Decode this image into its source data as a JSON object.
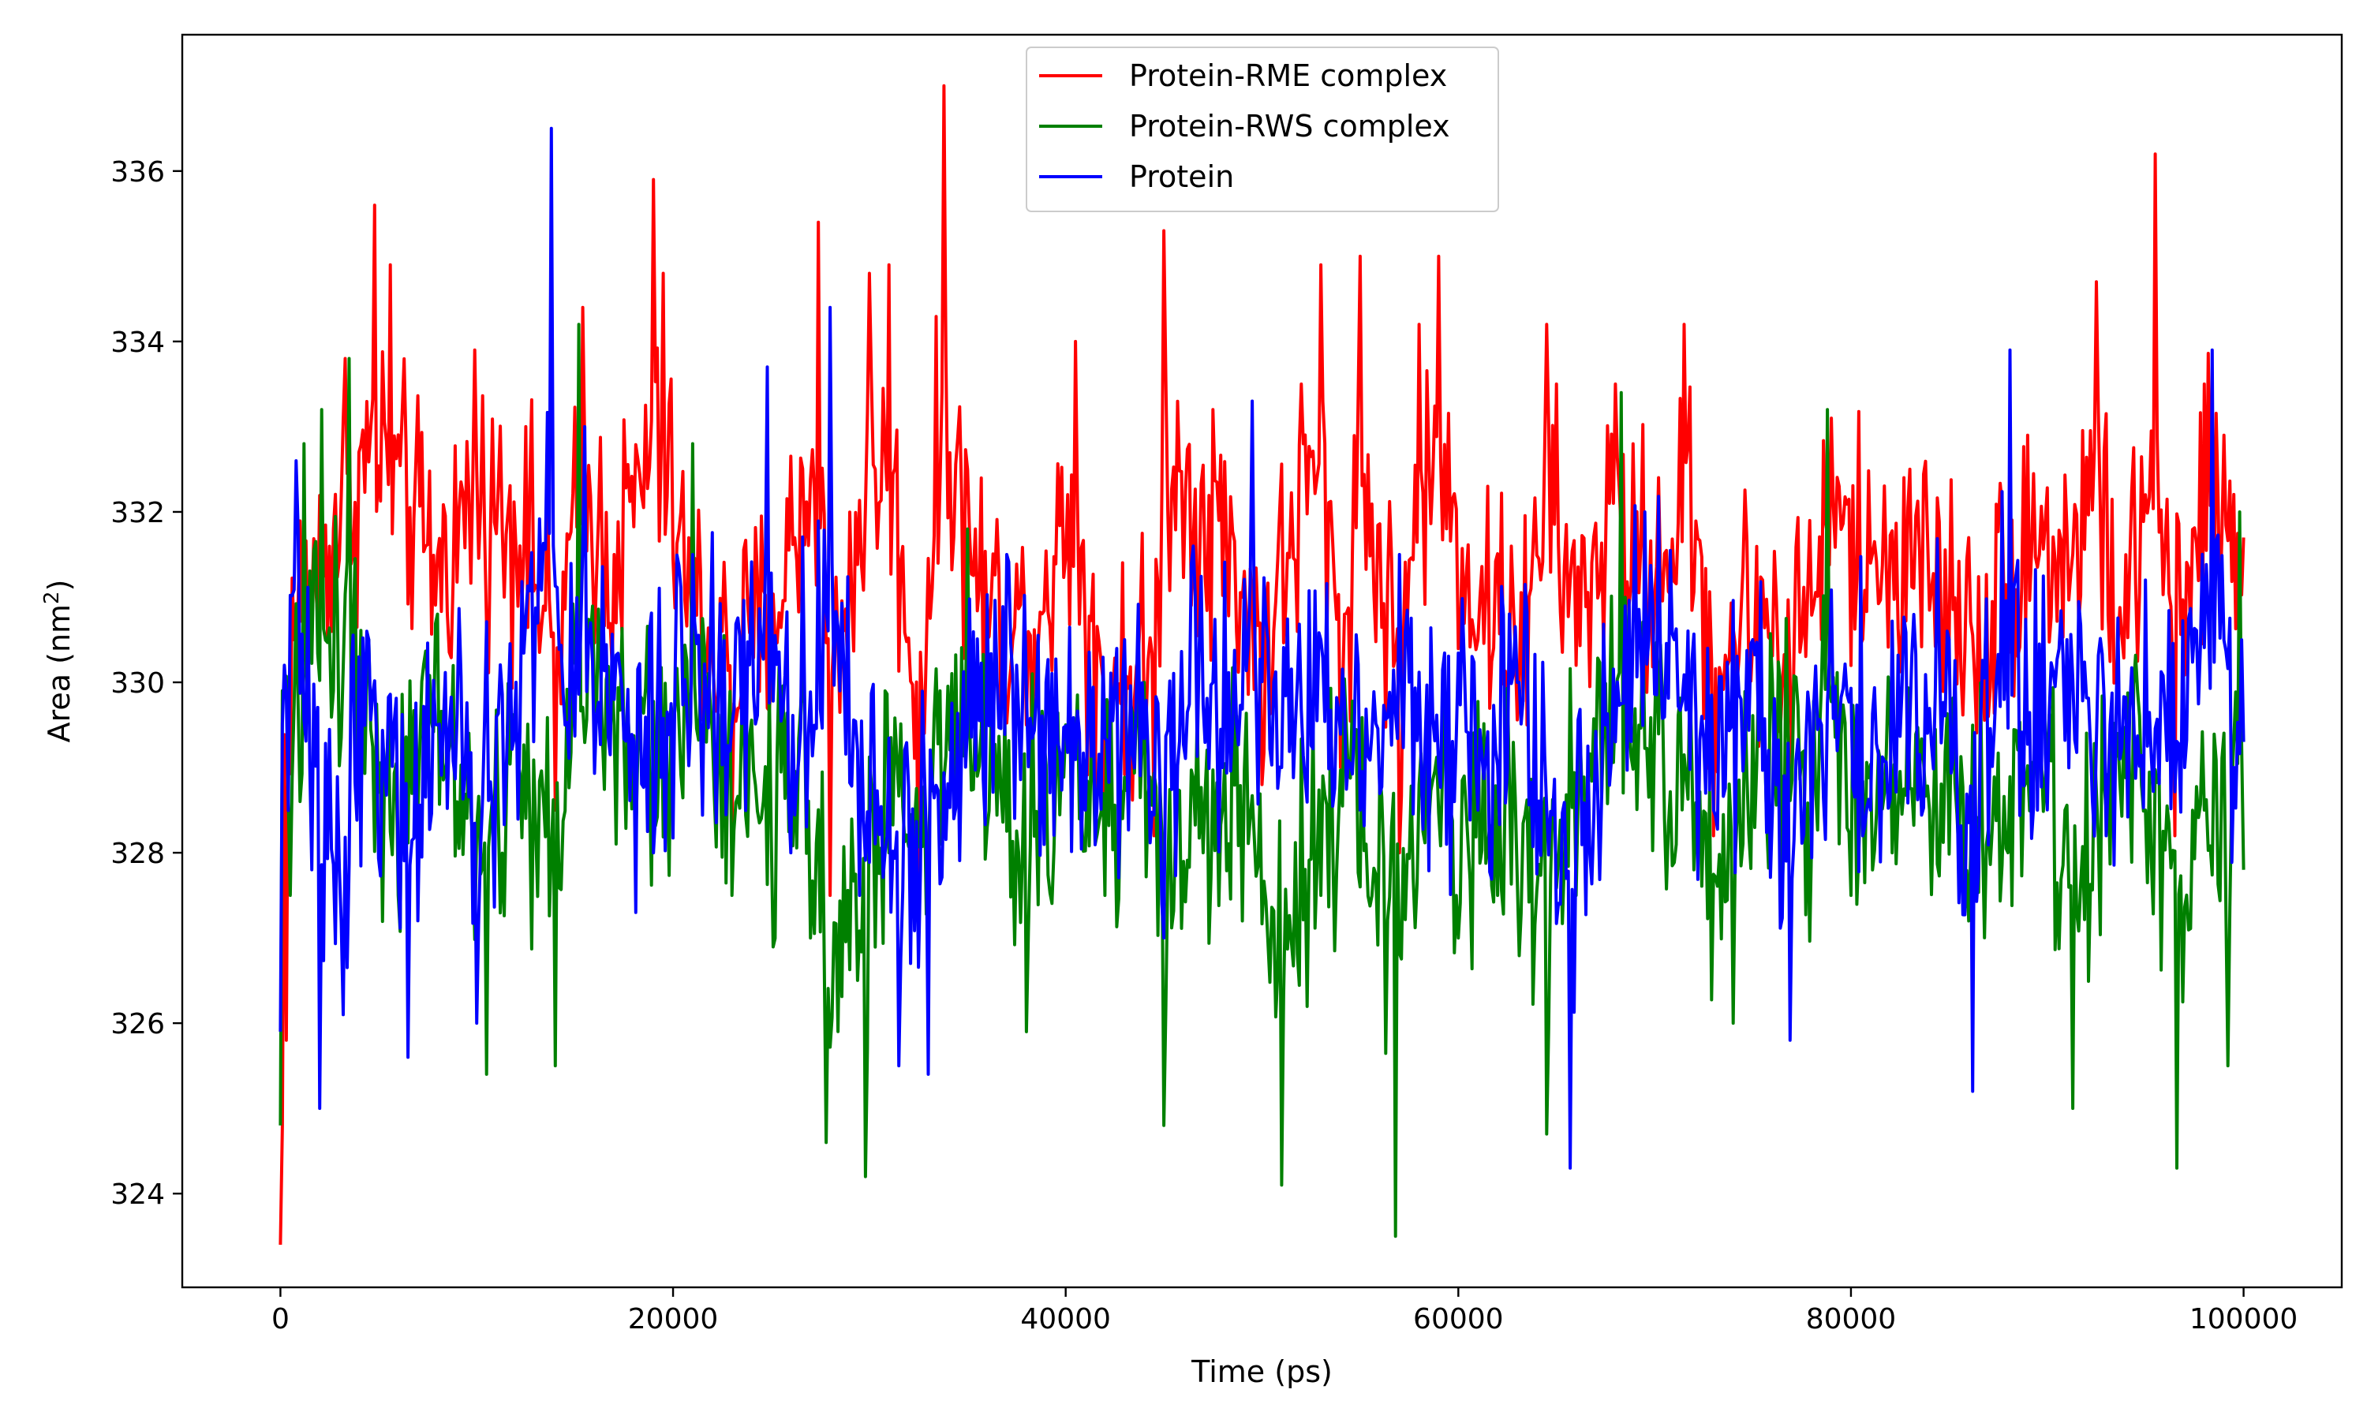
{
  "chart_data": {
    "type": "line",
    "xlabel": "Time (ps)",
    "ylabel": "Area (nm",
    "ylabel_sup": "2",
    "ylabel_close": ")",
    "xlim": [
      -5000,
      105000
    ],
    "ylim": [
      322.9,
      337.6
    ],
    "x_ticks": [
      0,
      20000,
      40000,
      60000,
      80000,
      100000
    ],
    "y_ticks": [
      324,
      326,
      328,
      330,
      332,
      334,
      336
    ],
    "grid": false,
    "legend_position": "top-center",
    "series": [
      {
        "name": "Protein-RME complex",
        "color": "#ff0000",
        "sample_interval": 100,
        "x_range": [
          0,
          100000
        ],
        "keypoints": [
          [
            0,
            323.4
          ],
          [
            100,
            324.8
          ],
          [
            300,
            325.8
          ],
          [
            700,
            330.5
          ],
          [
            1500,
            331.0
          ],
          [
            3300,
            333.8
          ],
          [
            4800,
            335.6
          ],
          [
            5600,
            334.9
          ],
          [
            8000,
            331.5
          ],
          [
            9900,
            333.9
          ],
          [
            12500,
            333.0
          ],
          [
            14000,
            328.5
          ],
          [
            15400,
            334.4
          ],
          [
            17000,
            331.5
          ],
          [
            19000,
            335.9
          ],
          [
            19500,
            334.8
          ],
          [
            21000,
            330.5
          ],
          [
            23000,
            328.3
          ],
          [
            25000,
            330.0
          ],
          [
            27400,
            335.4
          ],
          [
            28000,
            327.5
          ],
          [
            30000,
            334.8
          ],
          [
            31000,
            334.9
          ],
          [
            32500,
            327.0
          ],
          [
            33800,
            337.0
          ],
          [
            35000,
            332.5
          ],
          [
            36000,
            330.5
          ],
          [
            38000,
            329.5
          ],
          [
            40500,
            334.0
          ],
          [
            41000,
            330.5
          ],
          [
            42000,
            328.0
          ],
          [
            44500,
            328.2
          ],
          [
            45000,
            335.3
          ],
          [
            47500,
            333.2
          ],
          [
            49000,
            331.0
          ],
          [
            50000,
            328.8
          ],
          [
            52000,
            333.5
          ],
          [
            53000,
            334.9
          ],
          [
            54000,
            329.0
          ],
          [
            55000,
            335.0
          ],
          [
            57000,
            328.0
          ],
          [
            58000,
            334.2
          ],
          [
            59000,
            335.0
          ],
          [
            61000,
            330.5
          ],
          [
            63500,
            329.5
          ],
          [
            64500,
            334.2
          ],
          [
            66000,
            330.2
          ],
          [
            68000,
            333.5
          ],
          [
            70000,
            331.0
          ],
          [
            71500,
            334.2
          ],
          [
            73000,
            328.2
          ],
          [
            75000,
            330.5
          ],
          [
            77000,
            329.0
          ],
          [
            79000,
            333.1
          ],
          [
            81000,
            331.4
          ],
          [
            83000,
            332.5
          ],
          [
            85000,
            330.5
          ],
          [
            87000,
            329.6
          ],
          [
            89000,
            332.9
          ],
          [
            91000,
            331.8
          ],
          [
            92500,
            334.7
          ],
          [
            93500,
            330.0
          ],
          [
            95000,
            332.2
          ],
          [
            95500,
            336.2
          ],
          [
            96500,
            328.2
          ],
          [
            98000,
            333.5
          ],
          [
            99000,
            332.9
          ],
          [
            100000,
            331.7
          ]
        ]
      },
      {
        "name": "Protein-RWS complex",
        "color": "#008000",
        "sample_interval": 100,
        "x_range": [
          0,
          100000
        ],
        "keypoints": [
          [
            0,
            324.8
          ],
          [
            150,
            329.9
          ],
          [
            500,
            327.5
          ],
          [
            1200,
            332.8
          ],
          [
            2100,
            333.2
          ],
          [
            3500,
            333.8
          ],
          [
            4500,
            330.5
          ],
          [
            6000,
            327.5
          ],
          [
            8000,
            330.8
          ],
          [
            10500,
            325.4
          ],
          [
            12000,
            329.5
          ],
          [
            14000,
            325.5
          ],
          [
            15200,
            334.2
          ],
          [
            17000,
            329.5
          ],
          [
            20000,
            329.5
          ],
          [
            21000,
            332.8
          ],
          [
            23000,
            327.5
          ],
          [
            25000,
            328.2
          ],
          [
            27000,
            327.0
          ],
          [
            27800,
            324.6
          ],
          [
            29800,
            324.2
          ],
          [
            31000,
            328.0
          ],
          [
            33000,
            327.8
          ],
          [
            35000,
            331.8
          ],
          [
            36000,
            328.3
          ],
          [
            38000,
            325.9
          ],
          [
            40000,
            329.5
          ],
          [
            42000,
            327.5
          ],
          [
            44000,
            330.0
          ],
          [
            45000,
            324.8
          ],
          [
            47000,
            328.0
          ],
          [
            49000,
            327.2
          ],
          [
            51000,
            324.1
          ],
          [
            53000,
            327.5
          ],
          [
            55000,
            327.6
          ],
          [
            56800,
            323.5
          ],
          [
            58000,
            328.8
          ],
          [
            60000,
            327.0
          ],
          [
            62000,
            327.5
          ],
          [
            64500,
            324.7
          ],
          [
            66000,
            327.5
          ],
          [
            68300,
            333.4
          ],
          [
            70000,
            329.5
          ],
          [
            72000,
            327.8
          ],
          [
            74000,
            326.0
          ],
          [
            76000,
            330.0
          ],
          [
            78000,
            328.2
          ],
          [
            78800,
            333.2
          ],
          [
            80000,
            327.5
          ],
          [
            82000,
            329.5
          ],
          [
            84000,
            328.5
          ],
          [
            86000,
            327.2
          ],
          [
            88000,
            328.0
          ],
          [
            90000,
            329.2
          ],
          [
            91300,
            325.0
          ],
          [
            93000,
            328.5
          ],
          [
            95000,
            328.5
          ],
          [
            96600,
            324.3
          ],
          [
            98000,
            328.5
          ],
          [
            99200,
            325.5
          ],
          [
            99800,
            332.0
          ],
          [
            100000,
            327.8
          ]
        ]
      },
      {
        "name": "Protein",
        "color": "#0000ff",
        "sample_interval": 100,
        "x_range": [
          0,
          100000
        ],
        "keypoints": [
          [
            0,
            325.9
          ],
          [
            200,
            330.2
          ],
          [
            800,
            332.6
          ],
          [
            1500,
            329.0
          ],
          [
            2000,
            325.0
          ],
          [
            3200,
            326.1
          ],
          [
            4500,
            330.5
          ],
          [
            6500,
            325.6
          ],
          [
            8000,
            329.5
          ],
          [
            10000,
            326.0
          ],
          [
            12000,
            330.0
          ],
          [
            13800,
            336.5
          ],
          [
            14500,
            329.5
          ],
          [
            15500,
            333.0
          ],
          [
            17000,
            329.8
          ],
          [
            19000,
            328.0
          ],
          [
            21000,
            331.5
          ],
          [
            23000,
            329.5
          ],
          [
            24800,
            333.7
          ],
          [
            26000,
            328.0
          ],
          [
            28000,
            334.4
          ],
          [
            29500,
            327.5
          ],
          [
            31500,
            325.5
          ],
          [
            33000,
            325.4
          ],
          [
            35000,
            329.5
          ],
          [
            37000,
            331.5
          ],
          [
            39000,
            330.0
          ],
          [
            41000,
            328.5
          ],
          [
            43000,
            330.5
          ],
          [
            45000,
            327.0
          ],
          [
            46500,
            331.6
          ],
          [
            48000,
            329.0
          ],
          [
            49500,
            333.3
          ],
          [
            51000,
            329.0
          ],
          [
            53000,
            330.5
          ],
          [
            55000,
            328.5
          ],
          [
            57000,
            331.5
          ],
          [
            59000,
            329.0
          ],
          [
            61000,
            328.5
          ],
          [
            63000,
            330.0
          ],
          [
            65700,
            324.3
          ],
          [
            67500,
            329.5
          ],
          [
            69500,
            332.0
          ],
          [
            71000,
            330.5
          ],
          [
            73000,
            328.5
          ],
          [
            75000,
            330.5
          ],
          [
            76900,
            325.8
          ],
          [
            78500,
            329.5
          ],
          [
            81000,
            328.5
          ],
          [
            83000,
            329.5
          ],
          [
            85000,
            330.5
          ],
          [
            86200,
            325.2
          ],
          [
            88100,
            333.9
          ],
          [
            89500,
            328.5
          ],
          [
            91000,
            330.5
          ],
          [
            93000,
            328.2
          ],
          [
            95000,
            331.2
          ],
          [
            97000,
            329.0
          ],
          [
            98400,
            333.9
          ],
          [
            99500,
            329.0
          ],
          [
            100000,
            329.3
          ]
        ]
      }
    ]
  }
}
